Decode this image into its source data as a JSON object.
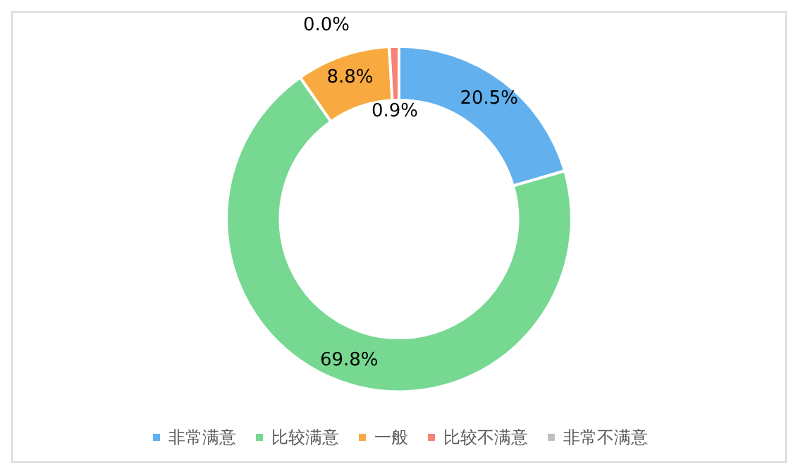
{
  "chart_data": {
    "type": "donut",
    "categories": [
      "非常满意",
      "比较满意",
      "一般",
      "比较不满意",
      "非常不满意"
    ],
    "values": [
      20.5,
      69.8,
      8.8,
      0.9,
      0.0
    ],
    "value_labels": [
      "20.5%",
      "69.8%",
      "8.8%",
      "0.9%",
      "0.0%"
    ],
    "colors": [
      "#62b0ee",
      "#77d891",
      "#f8aa40",
      "#f78276",
      "#bfbfbf"
    ],
    "legend": "bottom"
  }
}
